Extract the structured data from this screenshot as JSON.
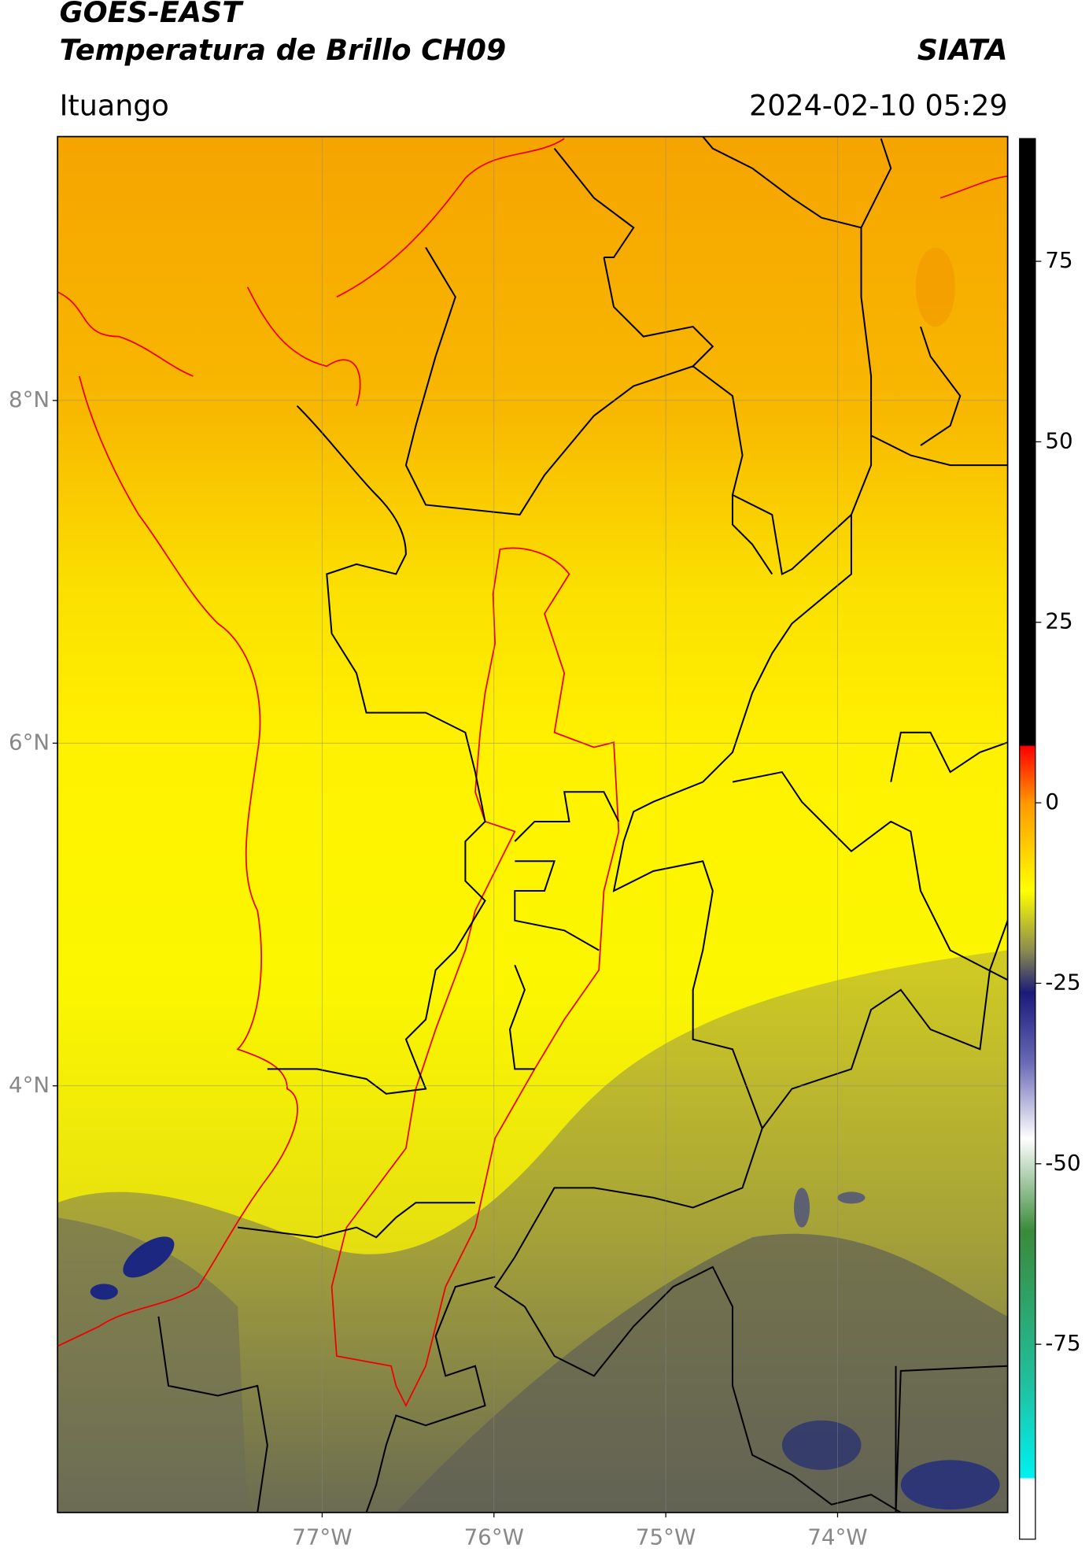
{
  "header": {
    "title": "GOES-EAST",
    "subtitle": "Temperatura de Brillo CH09",
    "source": "SIATA",
    "location": "Ituango",
    "datetime": "2024-02-10 05:29"
  },
  "map": {
    "xlim": [
      -78.54,
      -73.01
    ],
    "ylim": [
      1.51,
      9.54
    ],
    "xticks": [
      {
        "value": -77,
        "label": "77°W"
      },
      {
        "value": -76,
        "label": "76°W"
      },
      {
        "value": -75,
        "label": "75°W"
      },
      {
        "value": -74,
        "label": "74°W"
      }
    ],
    "yticks": [
      {
        "value": 8,
        "label": "8°N"
      },
      {
        "value": 6,
        "label": "6°N"
      },
      {
        "value": 4,
        "label": "4°N"
      }
    ],
    "grid": true
  },
  "colorbar": {
    "lim": [
      -102,
      92
    ],
    "ticks": [
      75,
      50,
      25,
      0,
      -25,
      -50,
      -75
    ]
  }
}
